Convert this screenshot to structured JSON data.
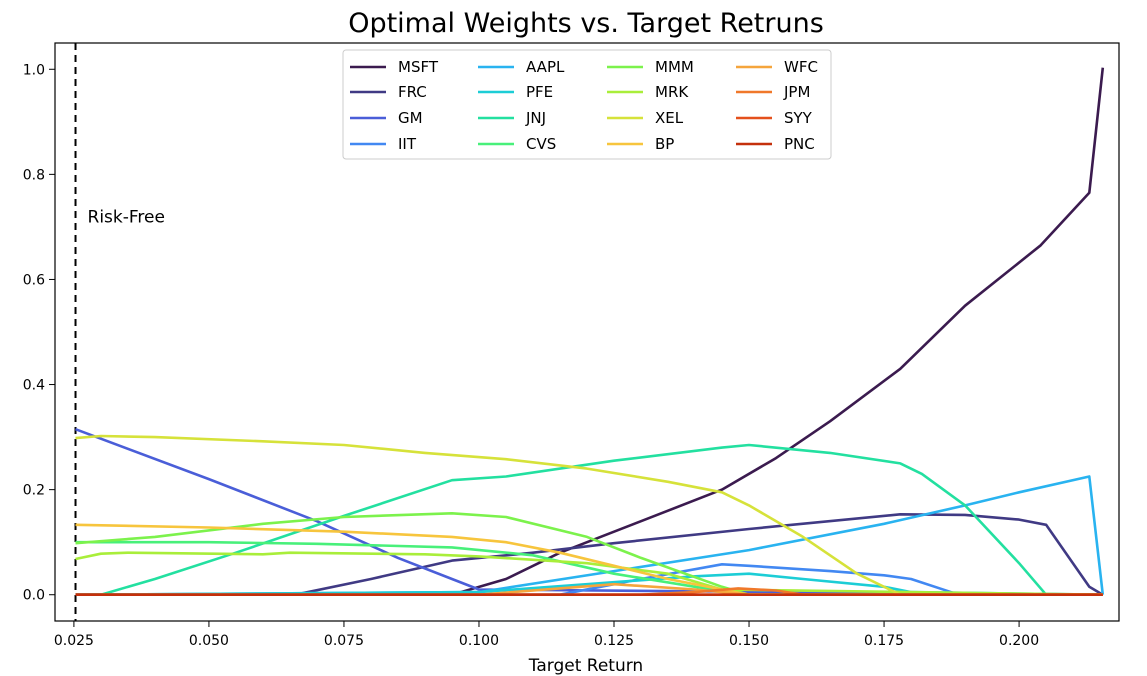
{
  "chart_data": {
    "type": "line",
    "title": "Optimal Weights vs. Target Retruns",
    "xlabel": "Target Return",
    "ylabel": "",
    "xlim": [
      0.0215,
      0.2185
    ],
    "ylim": [
      -0.05,
      1.05
    ],
    "xticks": [
      "0.025",
      "0.050",
      "0.075",
      "0.100",
      "0.125",
      "0.150",
      "0.175",
      "0.200"
    ],
    "yticks": [
      "0.0",
      "0.2",
      "0.4",
      "0.6",
      "0.8",
      "1.0"
    ],
    "grid": false,
    "legend_placement": "upper center",
    "legend_columns": 4,
    "annotation": {
      "text": "Risk-Free",
      "x": 0.0253,
      "line_style": "dashed vertical"
    },
    "series": [
      {
        "name": "MSFT",
        "color": "#3b1b4f",
        "x": [
          0.0253,
          0.095,
          0.105,
          0.115,
          0.13,
          0.145,
          0.155,
          0.165,
          0.178,
          0.19,
          0.204,
          0.213,
          0.2155
        ],
        "y": [
          0.0,
          0.0,
          0.03,
          0.08,
          0.14,
          0.2,
          0.26,
          0.33,
          0.43,
          0.55,
          0.665,
          0.765,
          1.003
        ]
      },
      {
        "name": "FRC",
        "color": "#403a84",
        "x": [
          0.0253,
          0.066,
          0.08,
          0.095,
          0.11,
          0.125,
          0.15,
          0.178,
          0.19,
          0.2,
          0.205,
          0.213,
          0.2155
        ],
        "y": [
          0.0,
          0.0,
          0.03,
          0.065,
          0.08,
          0.098,
          0.125,
          0.153,
          0.152,
          0.143,
          0.133,
          0.015,
          0.0
        ]
      },
      {
        "name": "GM",
        "color": "#4a5ed8",
        "x": [
          0.0253,
          0.05,
          0.07,
          0.085,
          0.095,
          0.1,
          0.2155
        ],
        "y": [
          0.315,
          0.22,
          0.14,
          0.07,
          0.03,
          0.01,
          0.0
        ]
      },
      {
        "name": "IIT",
        "color": "#4288f2",
        "x": [
          0.0253,
          0.115,
          0.13,
          0.145,
          0.15,
          0.165,
          0.175,
          0.18,
          0.188,
          0.2155
        ],
        "y": [
          0.0,
          0.0,
          0.03,
          0.058,
          0.055,
          0.045,
          0.037,
          0.03,
          0.003,
          0.0
        ]
      },
      {
        "name": "AAPL",
        "color": "#29b3f0",
        "x": [
          0.0253,
          0.1,
          0.125,
          0.15,
          0.175,
          0.19,
          0.2,
          0.213,
          0.2155
        ],
        "y": [
          0.0,
          0.005,
          0.045,
          0.085,
          0.135,
          0.17,
          0.195,
          0.225,
          0.0
        ]
      },
      {
        "name": "PFE",
        "color": "#1ccdd6",
        "x": [
          0.0253,
          0.1,
          0.12,
          0.14,
          0.15,
          0.16,
          0.175,
          0.18,
          0.2155
        ],
        "y": [
          0.0,
          0.005,
          0.02,
          0.035,
          0.04,
          0.03,
          0.015,
          0.005,
          0.0
        ]
      },
      {
        "name": "JNJ",
        "color": "#23e0a0",
        "x": [
          0.0253,
          0.03,
          0.04,
          0.055,
          0.075,
          0.095,
          0.105,
          0.125,
          0.145,
          0.15,
          0.165,
          0.178,
          0.182,
          0.19,
          0.2,
          0.205,
          0.2155
        ],
        "y": [
          0.0,
          0.0,
          0.03,
          0.08,
          0.15,
          0.218,
          0.225,
          0.255,
          0.28,
          0.285,
          0.27,
          0.25,
          0.23,
          0.17,
          0.06,
          0.0,
          0.0
        ]
      },
      {
        "name": "CVS",
        "color": "#48f07a",
        "x": [
          0.0253,
          0.05,
          0.07,
          0.095,
          0.11,
          0.125,
          0.14,
          0.15,
          0.2155
        ],
        "y": [
          0.1,
          0.1,
          0.097,
          0.09,
          0.075,
          0.04,
          0.015,
          0.0,
          0.0
        ]
      },
      {
        "name": "MMM",
        "color": "#7cf24c",
        "x": [
          0.0253,
          0.04,
          0.06,
          0.075,
          0.095,
          0.105,
          0.12,
          0.13,
          0.145,
          0.15,
          0.2155
        ],
        "y": [
          0.098,
          0.11,
          0.135,
          0.148,
          0.155,
          0.148,
          0.11,
          0.07,
          0.015,
          0.0,
          0.0
        ]
      },
      {
        "name": "MRK",
        "color": "#a9ee3a",
        "x": [
          0.0253,
          0.03,
          0.035,
          0.06,
          0.065,
          0.09,
          0.1,
          0.12,
          0.135,
          0.145,
          0.2155
        ],
        "y": [
          0.068,
          0.078,
          0.08,
          0.077,
          0.08,
          0.077,
          0.073,
          0.06,
          0.04,
          0.01,
          0.0
        ]
      },
      {
        "name": "XEL",
        "color": "#d6e23a",
        "x": [
          0.0253,
          0.03,
          0.04,
          0.06,
          0.075,
          0.09,
          0.105,
          0.12,
          0.135,
          0.145,
          0.15,
          0.16,
          0.17,
          0.178,
          0.2155
        ],
        "y": [
          0.298,
          0.302,
          0.3,
          0.292,
          0.285,
          0.27,
          0.258,
          0.24,
          0.215,
          0.195,
          0.17,
          0.11,
          0.04,
          0.0,
          0.0
        ]
      },
      {
        "name": "BP",
        "color": "#f7c53d",
        "x": [
          0.0253,
          0.05,
          0.075,
          0.095,
          0.105,
          0.115,
          0.125,
          0.135,
          0.145,
          0.15,
          0.2155
        ],
        "y": [
          0.133,
          0.128,
          0.12,
          0.11,
          0.1,
          0.08,
          0.055,
          0.03,
          0.01,
          0.0,
          0.0
        ]
      },
      {
        "name": "WFC",
        "color": "#f5a53c",
        "x": [
          0.0253,
          0.1,
          0.125,
          0.14,
          0.15,
          0.2155
        ],
        "y": [
          0.0,
          0.0,
          0.02,
          0.01,
          0.0,
          0.0
        ]
      },
      {
        "name": "JPM",
        "color": "#f0782a",
        "x": [
          0.0253,
          0.13,
          0.14,
          0.148,
          0.155,
          0.16,
          0.2155
        ],
        "y": [
          0.0,
          0.0,
          0.005,
          0.012,
          0.008,
          0.0,
          0.0
        ]
      },
      {
        "name": "SYY",
        "color": "#e4501c",
        "x": [
          0.0253,
          0.2155
        ],
        "y": [
          0.0,
          0.0
        ]
      },
      {
        "name": "PNC",
        "color": "#c4300c",
        "x": [
          0.0253,
          0.2155
        ],
        "y": [
          0.0,
          0.0
        ]
      }
    ]
  }
}
